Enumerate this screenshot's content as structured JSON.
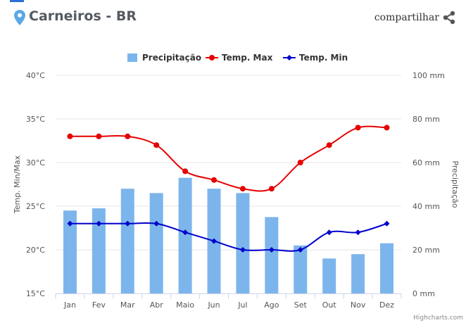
{
  "header": {
    "location": "Carneiros - BR",
    "share_label": "compartilhar",
    "pin_icon": "map-pin-icon",
    "share_icon": "share-icon",
    "accent_color": "#5aa9e6"
  },
  "chart_data": {
    "type": "bar",
    "categories": [
      "Jan",
      "Fev",
      "Mar",
      "Abr",
      "Maio",
      "Jun",
      "Jul",
      "Ago",
      "Set",
      "Out",
      "Nov",
      "Dez"
    ],
    "series": [
      {
        "name": "Precipitação",
        "type": "bar",
        "axis": "right",
        "color": "#7cb5ec",
        "values": [
          38,
          39,
          48,
          46,
          53,
          48,
          46,
          35,
          22,
          16,
          18,
          23
        ]
      },
      {
        "name": "Temp. Max",
        "type": "line",
        "axis": "left",
        "color": "#e60000",
        "values": [
          33,
          33,
          33,
          32,
          29,
          28,
          27,
          27,
          30,
          32,
          34,
          34
        ]
      },
      {
        "name": "Temp. Min",
        "type": "line",
        "axis": "left",
        "color": "#0000cc",
        "values": [
          23,
          23,
          23,
          23,
          22,
          21,
          20,
          20,
          20,
          22,
          22,
          23
        ]
      }
    ],
    "y_left": {
      "label": "Temp. Min/Max",
      "min": 15,
      "max": 40,
      "ticks": [
        "15°C",
        "20°C",
        "25°C",
        "30°C",
        "35°C",
        "40°C"
      ]
    },
    "y_right": {
      "label": "Precipitação",
      "min": 0,
      "max": 100,
      "ticks": [
        "0 mm",
        "20 mm",
        "40 mm",
        "60 mm",
        "80 mm",
        "100 mm"
      ]
    },
    "legend_position": "top-center",
    "grid": true,
    "credits": "Highcharts.com"
  }
}
